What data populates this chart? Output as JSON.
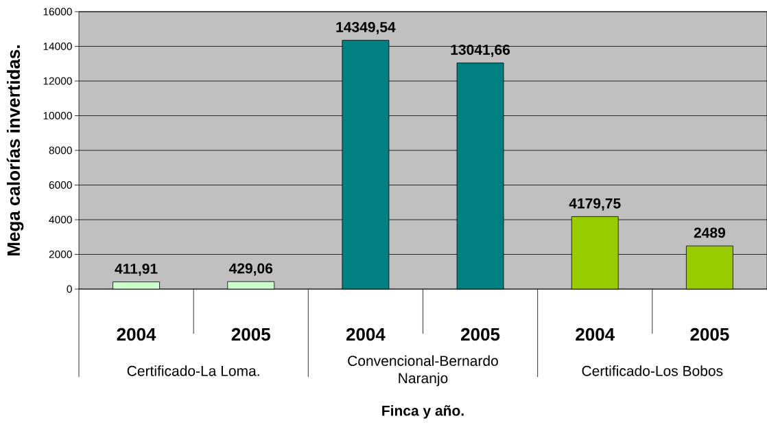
{
  "chart_data": {
    "type": "bar",
    "xlabel": "Finca y año.",
    "ylabel": "Mega calorías invertidas.",
    "categories": [
      "2004",
      "2005",
      "2004",
      "2005",
      "2004",
      "2005"
    ],
    "values": [
      411.91,
      429.06,
      14349.54,
      13041.66,
      4179.75,
      2489
    ],
    "colors": [
      "#ccffcc",
      "#ccffcc",
      "#008080",
      "#008080",
      "#99cc00",
      "#99cc00"
    ],
    "value_labels": [
      "411,91",
      "429,06",
      "14349,54",
      "13041,66",
      "4179,75",
      "2489"
    ],
    "ylim": [
      0,
      16000
    ],
    "yticks": [
      0,
      2000,
      4000,
      6000,
      8000,
      10000,
      12000,
      14000,
      16000
    ],
    "grid": "y",
    "annotations": [
      "Certificado-La Loma.",
      "Convencional-Bernardo Naranjo",
      "Certificado-Los Bobos"
    ]
  }
}
